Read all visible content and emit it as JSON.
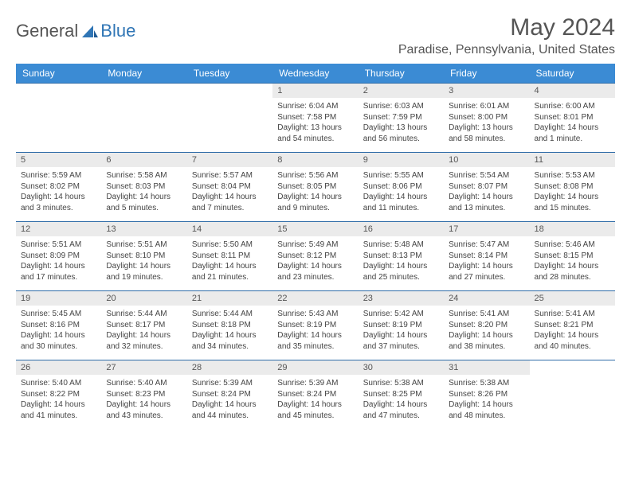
{
  "logo": {
    "part1": "General",
    "part2": "Blue"
  },
  "title": "May 2024",
  "location": "Paradise, Pennsylvania, United States",
  "colors": {
    "header_bg": "#3b8bd4",
    "header_text": "#ffffff",
    "daynum_bg": "#ebebeb",
    "border": "#2f6ca8",
    "text": "#444444",
    "title_text": "#555555"
  },
  "day_headers": [
    "Sunday",
    "Monday",
    "Tuesday",
    "Wednesday",
    "Thursday",
    "Friday",
    "Saturday"
  ],
  "weeks": [
    [
      {
        "n": "",
        "sunrise": "",
        "sunset": "",
        "daylight": ""
      },
      {
        "n": "",
        "sunrise": "",
        "sunset": "",
        "daylight": ""
      },
      {
        "n": "",
        "sunrise": "",
        "sunset": "",
        "daylight": ""
      },
      {
        "n": "1",
        "sunrise": "Sunrise: 6:04 AM",
        "sunset": "Sunset: 7:58 PM",
        "daylight": "Daylight: 13 hours and 54 minutes."
      },
      {
        "n": "2",
        "sunrise": "Sunrise: 6:03 AM",
        "sunset": "Sunset: 7:59 PM",
        "daylight": "Daylight: 13 hours and 56 minutes."
      },
      {
        "n": "3",
        "sunrise": "Sunrise: 6:01 AM",
        "sunset": "Sunset: 8:00 PM",
        "daylight": "Daylight: 13 hours and 58 minutes."
      },
      {
        "n": "4",
        "sunrise": "Sunrise: 6:00 AM",
        "sunset": "Sunset: 8:01 PM",
        "daylight": "Daylight: 14 hours and 1 minute."
      }
    ],
    [
      {
        "n": "5",
        "sunrise": "Sunrise: 5:59 AM",
        "sunset": "Sunset: 8:02 PM",
        "daylight": "Daylight: 14 hours and 3 minutes."
      },
      {
        "n": "6",
        "sunrise": "Sunrise: 5:58 AM",
        "sunset": "Sunset: 8:03 PM",
        "daylight": "Daylight: 14 hours and 5 minutes."
      },
      {
        "n": "7",
        "sunrise": "Sunrise: 5:57 AM",
        "sunset": "Sunset: 8:04 PM",
        "daylight": "Daylight: 14 hours and 7 minutes."
      },
      {
        "n": "8",
        "sunrise": "Sunrise: 5:56 AM",
        "sunset": "Sunset: 8:05 PM",
        "daylight": "Daylight: 14 hours and 9 minutes."
      },
      {
        "n": "9",
        "sunrise": "Sunrise: 5:55 AM",
        "sunset": "Sunset: 8:06 PM",
        "daylight": "Daylight: 14 hours and 11 minutes."
      },
      {
        "n": "10",
        "sunrise": "Sunrise: 5:54 AM",
        "sunset": "Sunset: 8:07 PM",
        "daylight": "Daylight: 14 hours and 13 minutes."
      },
      {
        "n": "11",
        "sunrise": "Sunrise: 5:53 AM",
        "sunset": "Sunset: 8:08 PM",
        "daylight": "Daylight: 14 hours and 15 minutes."
      }
    ],
    [
      {
        "n": "12",
        "sunrise": "Sunrise: 5:51 AM",
        "sunset": "Sunset: 8:09 PM",
        "daylight": "Daylight: 14 hours and 17 minutes."
      },
      {
        "n": "13",
        "sunrise": "Sunrise: 5:51 AM",
        "sunset": "Sunset: 8:10 PM",
        "daylight": "Daylight: 14 hours and 19 minutes."
      },
      {
        "n": "14",
        "sunrise": "Sunrise: 5:50 AM",
        "sunset": "Sunset: 8:11 PM",
        "daylight": "Daylight: 14 hours and 21 minutes."
      },
      {
        "n": "15",
        "sunrise": "Sunrise: 5:49 AM",
        "sunset": "Sunset: 8:12 PM",
        "daylight": "Daylight: 14 hours and 23 minutes."
      },
      {
        "n": "16",
        "sunrise": "Sunrise: 5:48 AM",
        "sunset": "Sunset: 8:13 PM",
        "daylight": "Daylight: 14 hours and 25 minutes."
      },
      {
        "n": "17",
        "sunrise": "Sunrise: 5:47 AM",
        "sunset": "Sunset: 8:14 PM",
        "daylight": "Daylight: 14 hours and 27 minutes."
      },
      {
        "n": "18",
        "sunrise": "Sunrise: 5:46 AM",
        "sunset": "Sunset: 8:15 PM",
        "daylight": "Daylight: 14 hours and 28 minutes."
      }
    ],
    [
      {
        "n": "19",
        "sunrise": "Sunrise: 5:45 AM",
        "sunset": "Sunset: 8:16 PM",
        "daylight": "Daylight: 14 hours and 30 minutes."
      },
      {
        "n": "20",
        "sunrise": "Sunrise: 5:44 AM",
        "sunset": "Sunset: 8:17 PM",
        "daylight": "Daylight: 14 hours and 32 minutes."
      },
      {
        "n": "21",
        "sunrise": "Sunrise: 5:44 AM",
        "sunset": "Sunset: 8:18 PM",
        "daylight": "Daylight: 14 hours and 34 minutes."
      },
      {
        "n": "22",
        "sunrise": "Sunrise: 5:43 AM",
        "sunset": "Sunset: 8:19 PM",
        "daylight": "Daylight: 14 hours and 35 minutes."
      },
      {
        "n": "23",
        "sunrise": "Sunrise: 5:42 AM",
        "sunset": "Sunset: 8:19 PM",
        "daylight": "Daylight: 14 hours and 37 minutes."
      },
      {
        "n": "24",
        "sunrise": "Sunrise: 5:41 AM",
        "sunset": "Sunset: 8:20 PM",
        "daylight": "Daylight: 14 hours and 38 minutes."
      },
      {
        "n": "25",
        "sunrise": "Sunrise: 5:41 AM",
        "sunset": "Sunset: 8:21 PM",
        "daylight": "Daylight: 14 hours and 40 minutes."
      }
    ],
    [
      {
        "n": "26",
        "sunrise": "Sunrise: 5:40 AM",
        "sunset": "Sunset: 8:22 PM",
        "daylight": "Daylight: 14 hours and 41 minutes."
      },
      {
        "n": "27",
        "sunrise": "Sunrise: 5:40 AM",
        "sunset": "Sunset: 8:23 PM",
        "daylight": "Daylight: 14 hours and 43 minutes."
      },
      {
        "n": "28",
        "sunrise": "Sunrise: 5:39 AM",
        "sunset": "Sunset: 8:24 PM",
        "daylight": "Daylight: 14 hours and 44 minutes."
      },
      {
        "n": "29",
        "sunrise": "Sunrise: 5:39 AM",
        "sunset": "Sunset: 8:24 PM",
        "daylight": "Daylight: 14 hours and 45 minutes."
      },
      {
        "n": "30",
        "sunrise": "Sunrise: 5:38 AM",
        "sunset": "Sunset: 8:25 PM",
        "daylight": "Daylight: 14 hours and 47 minutes."
      },
      {
        "n": "31",
        "sunrise": "Sunrise: 5:38 AM",
        "sunset": "Sunset: 8:26 PM",
        "daylight": "Daylight: 14 hours and 48 minutes."
      },
      {
        "n": "",
        "sunrise": "",
        "sunset": "",
        "daylight": ""
      }
    ]
  ]
}
